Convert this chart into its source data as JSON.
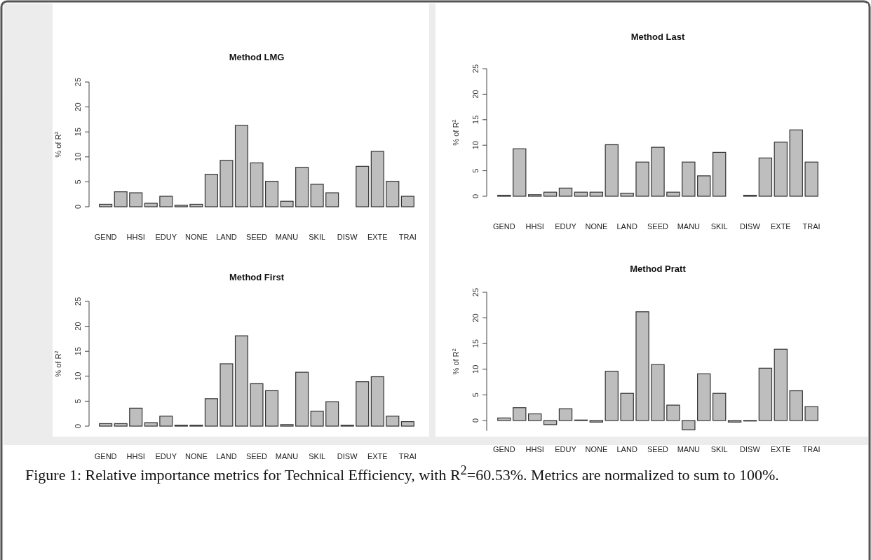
{
  "chart_data": [
    {
      "type": "bar",
      "title": "Method LMG",
      "ylabel": "% of R$^{2}$",
      "categories": [
        "GEND",
        null,
        "HHSI",
        null,
        "EDUY",
        null,
        "NONE",
        null,
        "LAND",
        null,
        "SEED",
        null,
        "MANU",
        null,
        "SKIL",
        null,
        "DISW",
        null,
        "EXTE",
        null,
        "TRAI"
      ],
      "values": [
        0.5,
        3.0,
        2.8,
        0.7,
        2.1,
        0.3,
        0.5,
        6.5,
        9.3,
        16.3,
        8.8,
        5.1,
        1.1,
        7.9,
        4.5,
        2.8,
        0,
        8.1,
        11.1,
        5.1,
        2.1
      ],
      "color": "#bebebe",
      "ylim": [
        0,
        25
      ],
      "yticks": [
        0,
        5,
        10,
        15,
        20,
        25
      ],
      "annotations": [
        "Figure 1: Relative importance metrics for Technical Efficiency, with R$^{2}$=60.53%. Metrics are normalized to sum to 100%."
      ]
    },
    {
      "type": "bar",
      "title": "Method Last",
      "ylabel": "% of R$^{2}$",
      "categories": [
        "GEND",
        null,
        "HHSI",
        null,
        "EDUY",
        null,
        "NONE",
        null,
        "LAND",
        null,
        "SEED",
        null,
        "MANU",
        null,
        "SKIL",
        null,
        "DISW",
        null,
        "EXTE",
        null,
        "TRAI"
      ],
      "values": [
        0.2,
        9.3,
        0.3,
        0.8,
        1.6,
        0.8,
        0.8,
        10.1,
        0.6,
        6.7,
        9.6,
        0.8,
        6.7,
        4.0,
        8.6,
        0,
        0.2,
        7.5,
        10.6,
        13.0,
        6.7
      ],
      "color": "#bebebe",
      "ylim": [
        0,
        25
      ],
      "yticks": [
        0,
        5,
        10,
        15,
        20,
        25
      ]
    },
    {
      "type": "bar",
      "title": "Method First",
      "ylabel": "% of R$^{2}$",
      "categories": [
        "GEND",
        null,
        "HHSI",
        null,
        "EDUY",
        null,
        "NONE",
        null,
        "LAND",
        null,
        "SEED",
        null,
        "MANU",
        null,
        "SKIL",
        null,
        "DISW",
        null,
        "EXTE",
        null,
        "TRAI"
      ],
      "values": [
        0.5,
        0.5,
        3.6,
        0.7,
        2.0,
        0.2,
        0.2,
        5.5,
        12.5,
        18.1,
        8.5,
        7.1,
        0.3,
        10.8,
        3.0,
        4.9,
        0.2,
        8.9,
        9.9,
        2.0,
        0.9
      ],
      "color": "#bebebe",
      "ylim": [
        0,
        25
      ],
      "yticks": [
        0,
        5,
        10,
        15,
        20,
        25
      ]
    },
    {
      "type": "bar",
      "title": "Method Pratt",
      "ylabel": "% of R$^{2}$",
      "categories": [
        "GEND",
        null,
        "HHSI",
        null,
        "EDUY",
        null,
        "NONE",
        null,
        "LAND",
        null,
        "SEED",
        null,
        "MANU",
        null,
        "SKIL",
        null,
        "DISW",
        null,
        "EXTE",
        null,
        "TRAI"
      ],
      "values": [
        0.5,
        2.5,
        1.3,
        -0.8,
        2.3,
        0.1,
        -0.3,
        9.6,
        5.3,
        21.2,
        10.9,
        3.0,
        -1.8,
        9.1,
        5.3,
        -0.3,
        -0.1,
        10.2,
        13.9,
        5.8,
        2.7
      ],
      "color": "#bebebe",
      "ylim": [
        -2,
        25
      ],
      "yticks": [
        0,
        5,
        10,
        15,
        20,
        25
      ]
    }
  ]
}
